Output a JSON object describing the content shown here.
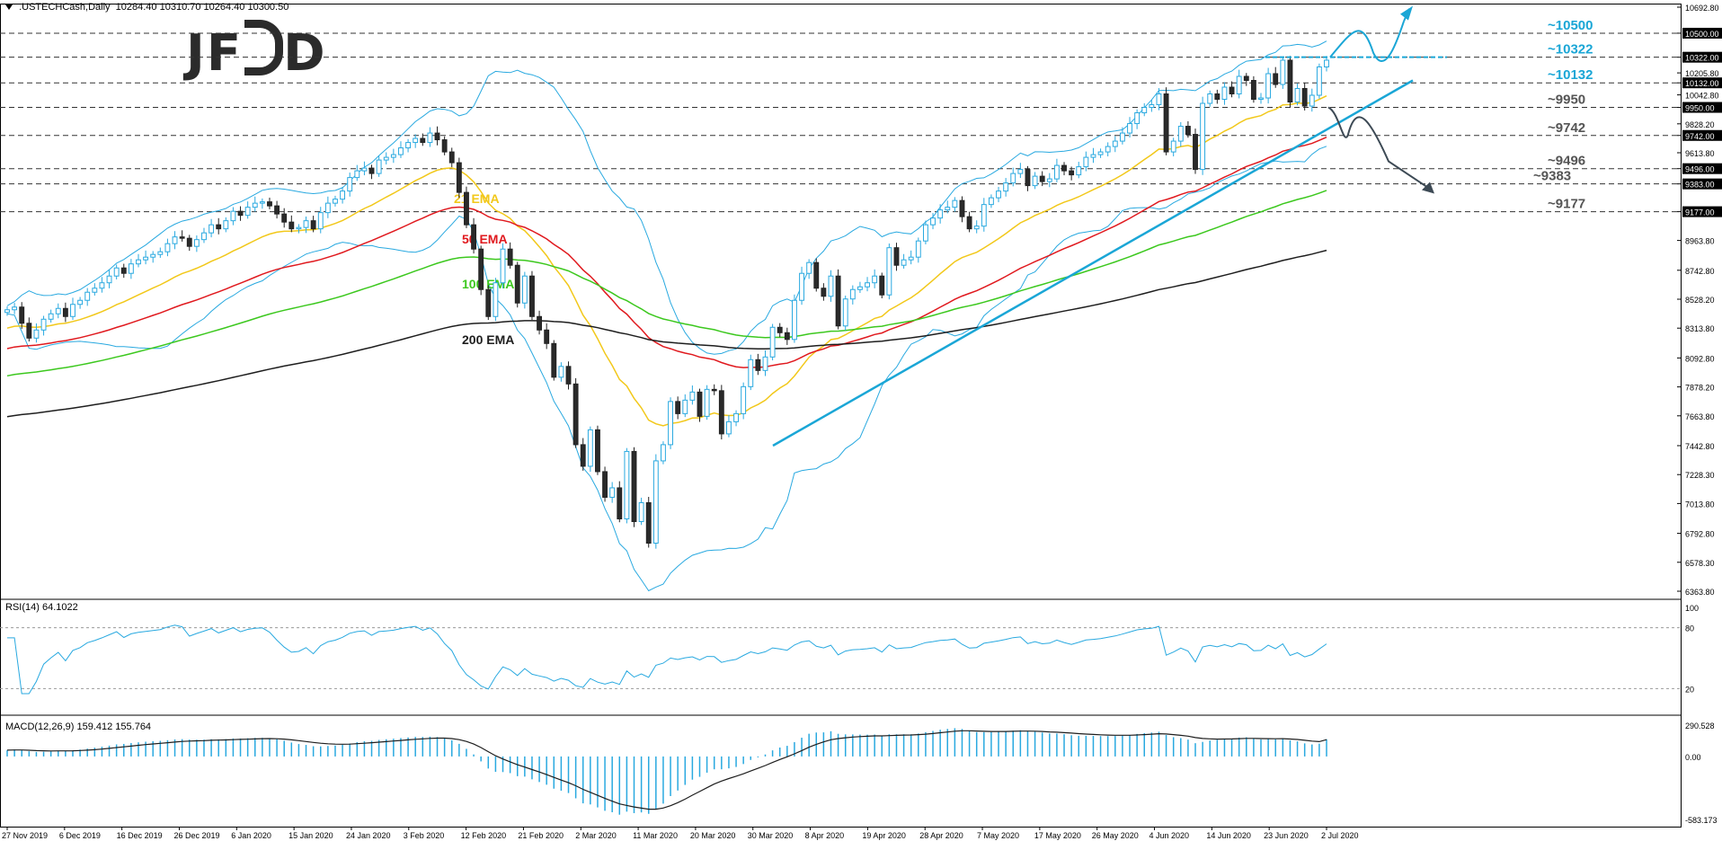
{
  "header": {
    "symbol": ".USTECHCash,Daily",
    "ohlc": "10284.40 10310.70 10264.40 10300.50"
  },
  "logo": {
    "text_left": "JF",
    "text_right": "D"
  },
  "chart_data": [
    {
      "type": "candlestick",
      "title": ".USTECHCash,Daily",
      "ylim": [
        6363.8,
        10692.8
      ],
      "y_ticks": [
        "10692.80",
        "10500.00",
        "10322.00",
        "10205.80",
        "10132.00",
        "10042.80",
        "9950.00",
        "9828.20",
        "9742.00",
        "9613.80",
        "9496.00",
        "9383.00",
        "9177.00",
        "8963.80",
        "8742.80",
        "8528.20",
        "8313.80",
        "8092.80",
        "7878.20",
        "7663.80",
        "7442.80",
        "7228.30",
        "7013.80",
        "6792.80",
        "6578.30",
        "6363.80"
      ],
      "highlighted_ticks": [
        "10500.00",
        "10322.00",
        "10132.00",
        "9950.00",
        "9742.00",
        "9496.00",
        "9383.00",
        "9177.00"
      ],
      "x_labels": [
        "27 Nov 2019",
        "6 Dec 2019",
        "16 Dec 2019",
        "26 Dec 2019",
        "6 Jan 2020",
        "15 Jan 2020",
        "24 Jan 2020",
        "3 Feb 2020",
        "12 Feb 2020",
        "21 Feb 2020",
        "2 Mar 2020",
        "11 Mar 2020",
        "20 Mar 2020",
        "30 Mar 2020",
        "8 Apr 2020",
        "19 Apr 2020",
        "28 Apr 2020",
        "7 May 2020",
        "17 May 2020",
        "26 May 2020",
        "4 Jun 2020",
        "14 Jun 2020",
        "23 Jun 2020",
        "2 Jul 2020"
      ],
      "levels": [
        {
          "label": "~10500",
          "value": 10500,
          "color": "#1aa6d6"
        },
        {
          "label": "~10322",
          "value": 10322,
          "color": "#1aa6d6"
        },
        {
          "label": "~10132",
          "value": 10132,
          "color": "#1aa6d6"
        },
        {
          "label": "~9950",
          "value": 9950,
          "color": "#555555"
        },
        {
          "label": "~9742",
          "value": 9742,
          "color": "#555555"
        },
        {
          "label": "~9496",
          "value": 9496,
          "color": "#555555"
        },
        {
          "label": "~9383",
          "value": 9383,
          "color": "#555555"
        },
        {
          "label": "~9177",
          "value": 9177,
          "color": "#555555"
        }
      ],
      "closes": [
        8450,
        8470,
        8350,
        8240,
        8300,
        8380,
        8420,
        8460,
        8400,
        8490,
        8520,
        8580,
        8610,
        8650,
        8700,
        8760,
        8720,
        8790,
        8820,
        8840,
        8860,
        8880,
        8940,
        8990,
        8980,
        8920,
        8970,
        9020,
        9080,
        9050,
        9110,
        9180,
        9150,
        9210,
        9240,
        9250,
        9220,
        9160,
        9100,
        9050,
        9060,
        9110,
        9050,
        9170,
        9240,
        9270,
        9330,
        9430,
        9480,
        9500,
        9460,
        9560,
        9580,
        9600,
        9650,
        9690,
        9720,
        9690,
        9760,
        9710,
        9620,
        9540,
        9320,
        9080,
        8900,
        8600,
        8400,
        8650,
        8900,
        8780,
        8500,
        8700,
        8400,
        8300,
        8200,
        7950,
        8030,
        7900,
        7450,
        7290,
        7560,
        7250,
        7060,
        7130,
        6900,
        7400,
        6880,
        7020,
        6720,
        7330,
        7450,
        7770,
        7680,
        7780,
        7840,
        7660,
        7860,
        7850,
        7530,
        7620,
        7680,
        7880,
        8080,
        8000,
        8100,
        8320,
        8280,
        8230,
        8520,
        8720,
        8800,
        8610,
        8550,
        8700,
        8330,
        8530,
        8600,
        8620,
        8650,
        8700,
        8560,
        8910,
        8780,
        8820,
        8840,
        8960,
        9080,
        9130,
        9190,
        9210,
        9260,
        9140,
        9050,
        9070,
        9230,
        9280,
        9330,
        9390,
        9460,
        9490,
        9370,
        9440,
        9400,
        9420,
        9520,
        9480,
        9450,
        9510,
        9580,
        9600,
        9620,
        9660,
        9700,
        9760,
        9830,
        9910,
        9950,
        9970,
        10050,
        9620,
        9700,
        9810,
        9750,
        9490,
        9980,
        10050,
        10010,
        10100,
        10050,
        10180,
        10150,
        10010,
        10020,
        10200,
        10120,
        10300,
        9990,
        10090,
        9960,
        10040,
        10250,
        10300
      ],
      "overlays": [
        {
          "name": "21 EMA",
          "color": "#f2c81a"
        },
        {
          "name": "50 EMA",
          "color": "#e0191e"
        },
        {
          "name": "100 EMA",
          "color": "#3cc81e"
        },
        {
          "name": "200 EMA",
          "color": "#1e1e1e"
        }
      ],
      "bollinger_color": "#29a9e0",
      "trendline_color": "#1aa6d6",
      "arrow_up_color": "#1aa6d6",
      "arrow_down_color": "#3d4a55"
    },
    {
      "type": "line",
      "title": "RSI(14) 64.1022",
      "ylim": [
        0,
        100
      ],
      "y_ticks": [
        "100",
        "80",
        "20"
      ],
      "color": "#29a9e0",
      "last": 64.1022
    },
    {
      "type": "bar",
      "title": "MACD(12,26,9) 159.412 155.764",
      "ylim": [
        -583.173,
        290.528
      ],
      "y_ticks": [
        "290.528",
        "0.00",
        "-583.173"
      ],
      "hist_color": "#29a9e0",
      "signal_color": "#1e1e1e",
      "values_last": [
        159.412,
        155.764
      ]
    }
  ]
}
